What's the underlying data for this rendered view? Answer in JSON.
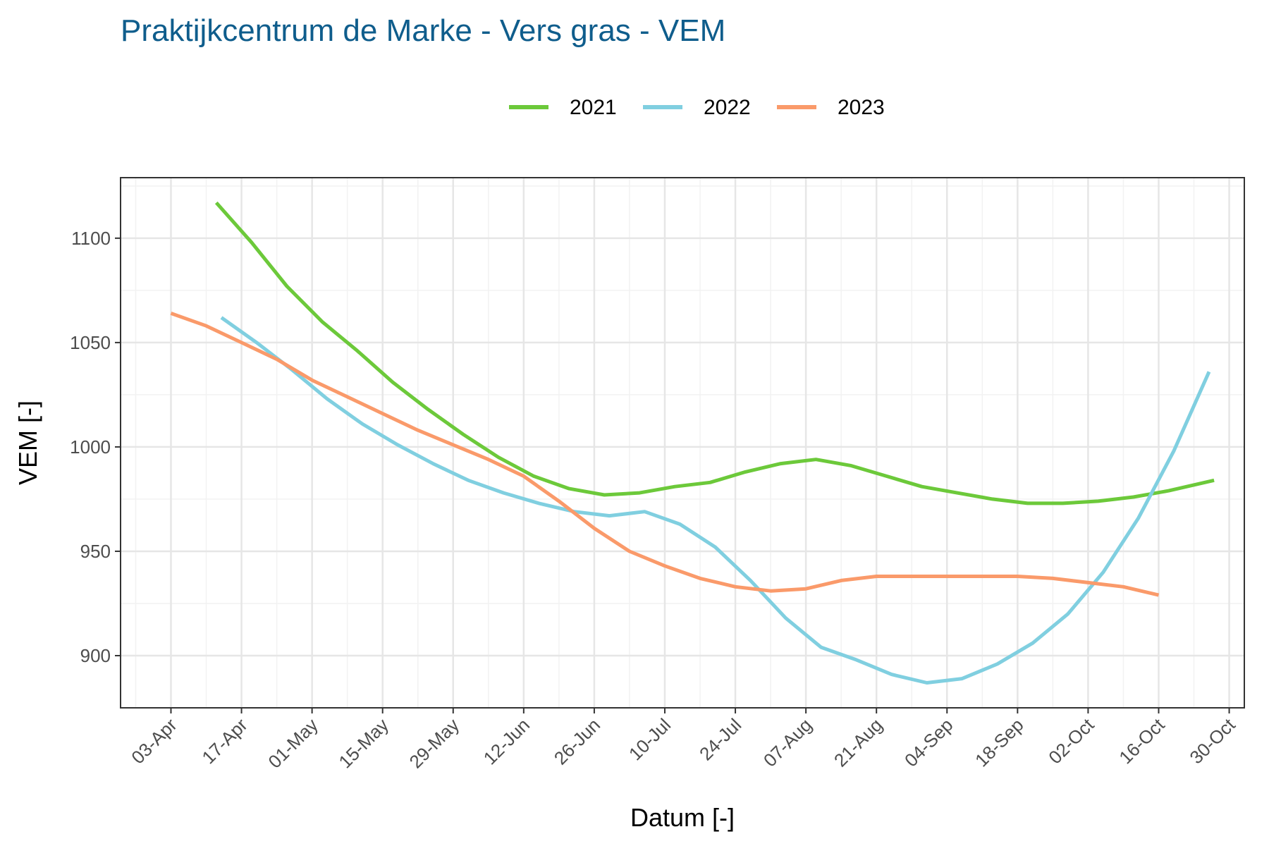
{
  "chart_data": {
    "type": "line",
    "title": "Praktijkcentrum de Marke - Vers gras - VEM",
    "x_label": "Datum [-]",
    "y_label": "VEM [-]",
    "xlim": [
      "24-Mar",
      "02-Nov"
    ],
    "xticks": [
      "03-Apr",
      "17-Apr",
      "01-May",
      "15-May",
      "29-May",
      "12-Jun",
      "26-Jun",
      "10-Jul",
      "24-Jul",
      "07-Aug",
      "21-Aug",
      "04-Sep",
      "18-Sep",
      "02-Oct",
      "16-Oct",
      "30-Oct"
    ],
    "ylim": [
      875,
      1129
    ],
    "yticks": [
      900,
      950,
      1000,
      1050,
      1100
    ],
    "grid": true,
    "legend": "top",
    "series": [
      {
        "name": "2021",
        "color": "#6cc93a",
        "x": [
          "12-Apr",
          "19-Apr",
          "26-Apr",
          "03-May",
          "10-May",
          "17-May",
          "24-May",
          "31-May",
          "07-Jun",
          "14-Jun",
          "21-Jun",
          "28-Jun",
          "05-Jul",
          "12-Jul",
          "19-Jul",
          "26-Jul",
          "02-Aug",
          "09-Aug",
          "16-Aug",
          "23-Aug",
          "30-Aug",
          "06-Sep",
          "13-Sep",
          "20-Sep",
          "27-Sep",
          "04-Oct",
          "11-Oct",
          "18-Oct",
          "27-Oct"
        ],
        "values": [
          1117,
          1098,
          1077,
          1060,
          1046,
          1031,
          1018,
          1006,
          995,
          986,
          980,
          977,
          978,
          981,
          983,
          988,
          992,
          994,
          991,
          986,
          981,
          978,
          975,
          973,
          973,
          974,
          976,
          979,
          984
        ]
      },
      {
        "name": "2022",
        "color": "#80cfe0",
        "x": [
          "13-Apr",
          "20-Apr",
          "27-Apr",
          "04-May",
          "11-May",
          "18-May",
          "25-May",
          "01-Jun",
          "08-Jun",
          "15-Jun",
          "22-Jun",
          "29-Jun",
          "06-Jul",
          "13-Jul",
          "20-Jul",
          "27-Jul",
          "03-Aug",
          "10-Aug",
          "17-Aug",
          "24-Aug",
          "31-Aug",
          "07-Sep",
          "14-Sep",
          "21-Sep",
          "28-Sep",
          "05-Oct",
          "12-Oct",
          "19-Oct",
          "26-Oct"
        ],
        "values": [
          1062,
          1050,
          1037,
          1023,
          1011,
          1001,
          992,
          984,
          978,
          973,
          969,
          967,
          969,
          963,
          952,
          936,
          918,
          904,
          898,
          891,
          887,
          889,
          896,
          906,
          920,
          940,
          966,
          998,
          1036
        ]
      },
      {
        "name": "2023",
        "color": "#fa9a6a",
        "x": [
          "03-Apr",
          "10-Apr",
          "17-Apr",
          "24-Apr",
          "01-May",
          "08-May",
          "15-May",
          "22-May",
          "29-May",
          "05-Jun",
          "12-Jun",
          "19-Jun",
          "26-Jun",
          "03-Jul",
          "10-Jul",
          "17-Jul",
          "24-Jul",
          "31-Jul",
          "07-Aug",
          "14-Aug",
          "21-Aug",
          "28-Aug",
          "04-Sep",
          "11-Sep",
          "18-Sep",
          "25-Sep",
          "02-Oct",
          "09-Oct",
          "16-Oct"
        ],
        "values": [
          1064,
          1058,
          1050,
          1042,
          1032,
          1024,
          1016,
          1008,
          1001,
          994,
          986,
          974,
          961,
          950,
          943,
          937,
          933,
          931,
          932,
          936,
          938,
          938,
          938,
          938,
          938,
          937,
          935,
          933,
          929
        ]
      }
    ]
  }
}
